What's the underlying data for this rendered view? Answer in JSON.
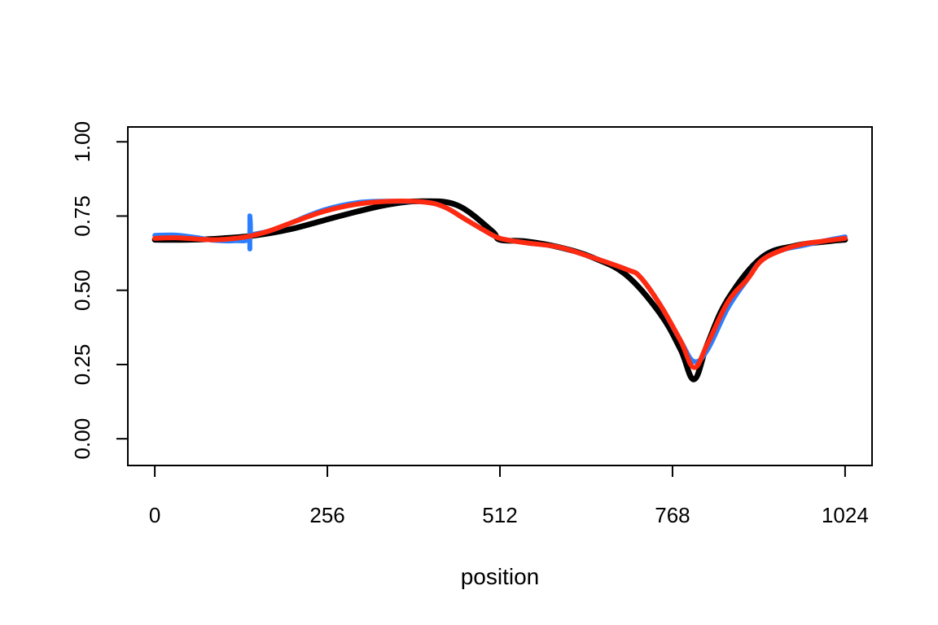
{
  "chart_data": {
    "type": "line",
    "title": "",
    "xlabel": "position",
    "ylabel": "",
    "xlim": [
      -40,
      1064
    ],
    "ylim": [
      -0.09,
      1.05
    ],
    "xticks": [
      0,
      256,
      512,
      768,
      1024
    ],
    "xtick_labels": [
      "0",
      "256",
      "512",
      "768",
      "1024"
    ],
    "yticks": [
      0,
      0.25,
      0.5,
      0.75,
      1
    ],
    "ytick_labels": [
      "0.00",
      "0.25",
      "0.50",
      "0.75",
      "1.00"
    ],
    "grid": false,
    "legend": "none",
    "series": [
      {
        "color": "#000000",
        "x": [
          0,
          50,
          100,
          150,
          200,
          250,
          300,
          350,
          400,
          450,
          500,
          512,
          550,
          600,
          650,
          700,
          750,
          780,
          800,
          820,
          850,
          900,
          950,
          1000,
          1024
        ],
        "y": [
          0.67,
          0.67,
          0.675,
          0.685,
          0.705,
          0.735,
          0.765,
          0.79,
          0.8,
          0.785,
          0.7,
          0.67,
          0.665,
          0.645,
          0.61,
          0.55,
          0.42,
          0.3,
          0.2,
          0.32,
          0.47,
          0.61,
          0.65,
          0.665,
          0.67
        ]
      },
      {
        "color": "#2b7fff",
        "x": [
          0,
          30,
          60,
          90,
          120,
          140,
          141,
          141,
          141,
          142,
          145,
          170,
          200,
          250,
          300,
          350,
          400,
          430,
          460,
          490,
          512,
          550,
          600,
          650,
          700,
          720,
          750,
          780,
          800,
          820,
          850,
          880,
          900,
          930,
          960,
          990,
          1024
        ],
        "y": [
          0.685,
          0.686,
          0.678,
          0.668,
          0.667,
          0.676,
          0.75,
          0.64,
          0.7,
          0.685,
          0.688,
          0.7,
          0.725,
          0.77,
          0.795,
          0.8,
          0.797,
          0.78,
          0.74,
          0.7,
          0.675,
          0.66,
          0.645,
          0.61,
          0.57,
          0.545,
          0.45,
          0.33,
          0.26,
          0.3,
          0.44,
          0.54,
          0.6,
          0.635,
          0.65,
          0.665,
          0.68
        ]
      },
      {
        "color": "#ff2a0f",
        "x": [
          0,
          30,
          60,
          90,
          120,
          140,
          170,
          200,
          250,
          300,
          350,
          400,
          430,
          460,
          490,
          512,
          550,
          600,
          650,
          700,
          720,
          750,
          780,
          800,
          820,
          850,
          880,
          900,
          930,
          960,
          990,
          1024
        ],
        "y": [
          0.675,
          0.677,
          0.673,
          0.67,
          0.675,
          0.682,
          0.7,
          0.725,
          0.765,
          0.79,
          0.8,
          0.797,
          0.78,
          0.74,
          0.7,
          0.675,
          0.66,
          0.645,
          0.61,
          0.57,
          0.545,
          0.45,
          0.33,
          0.24,
          0.32,
          0.46,
          0.54,
          0.6,
          0.635,
          0.655,
          0.665,
          0.675
        ]
      }
    ]
  }
}
